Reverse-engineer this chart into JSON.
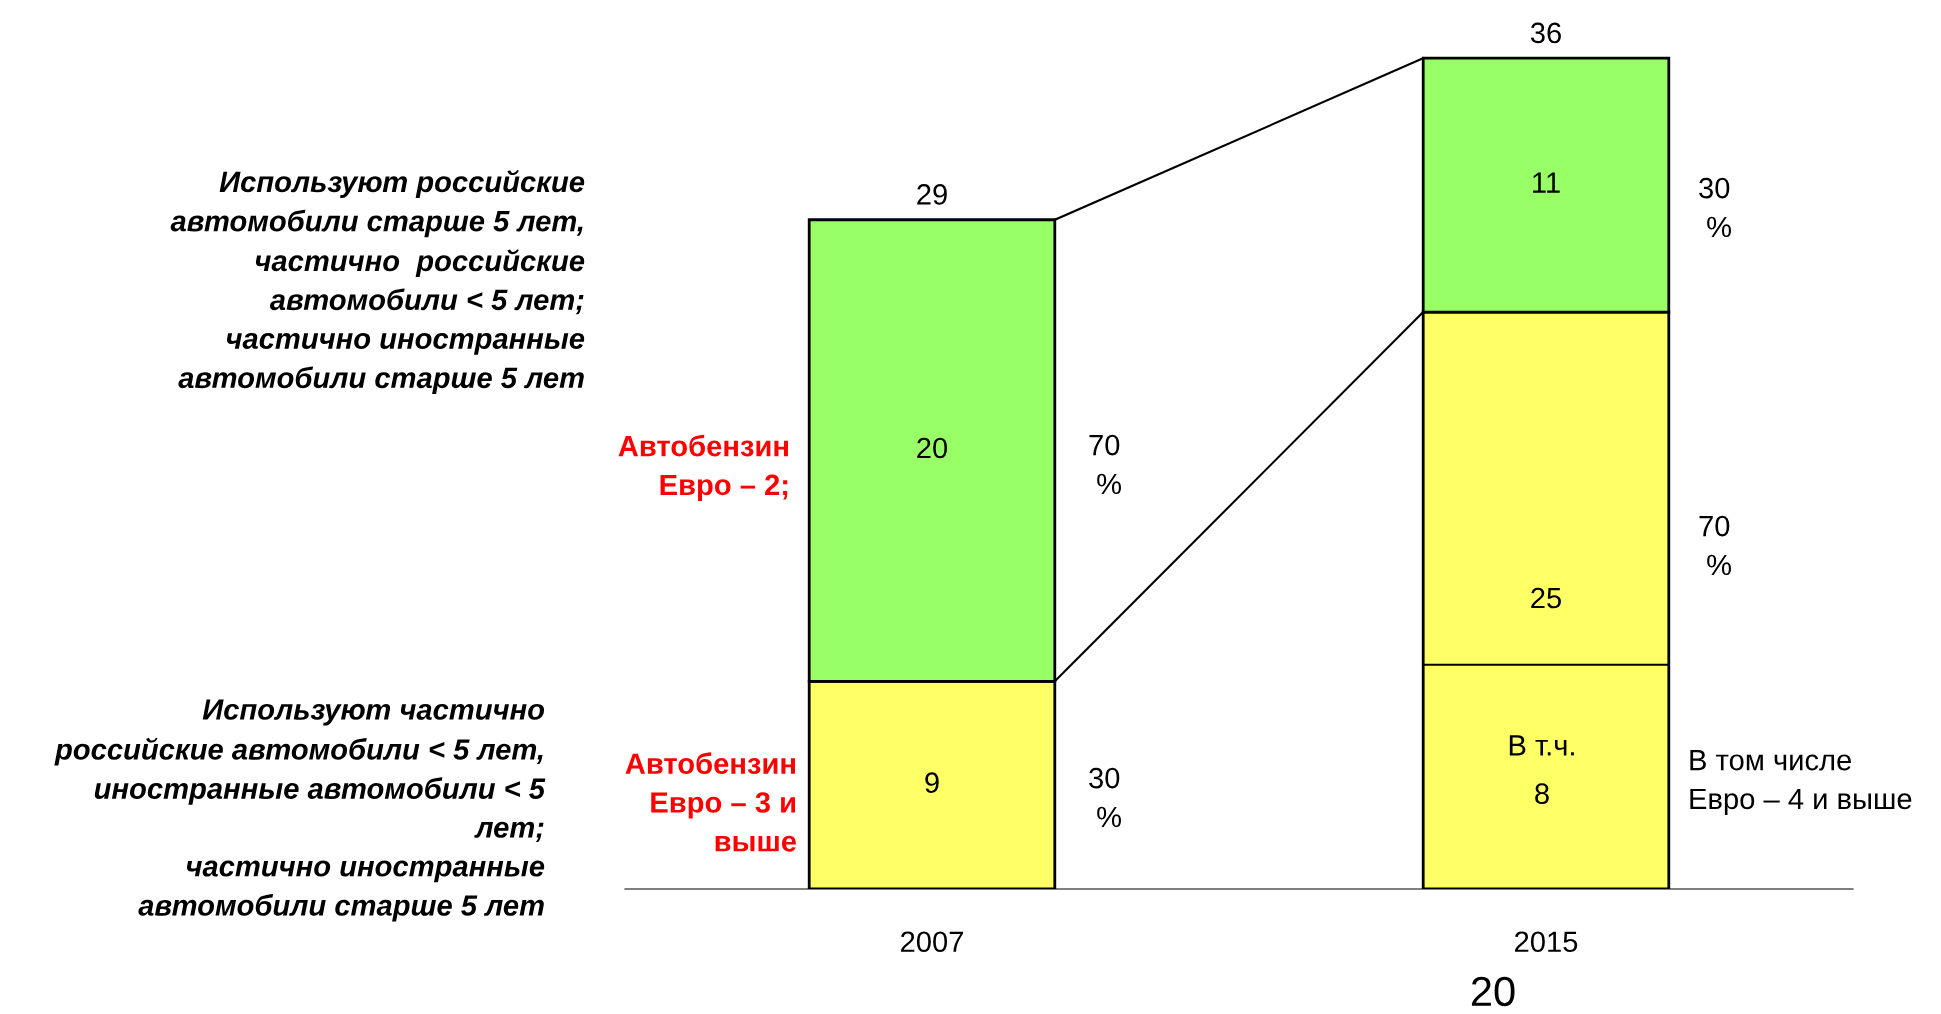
{
  "chart_data": {
    "type": "bar",
    "stacked": true,
    "categories": [
      "2007",
      "2015"
    ],
    "series": [
      {
        "color": "#ffff66",
        "values": [
          9,
          25
        ]
      },
      {
        "color": "#99ff66",
        "values": [
          20,
          11
        ]
      }
    ],
    "data_labels": true,
    "totals": [
      "29",
      "36"
    ],
    "grid": false,
    "legend": false,
    "annotations": [
      "Используют российские\nавтомобили старше 5 лет,\nчастично  российские\nавтомобили < 5 лет;\nчастично иностранные\nавтомобили старше 5 лет",
      "Автобензин\nЕвро – 2;",
      "Используют частично\nроссийские автомобили < 5 лет,\nиностранные автомобили < 5\nлет;\nчастично иностранные\nавтомобили старше 5 лет",
      "Автобензин\nЕвро – 3 и\nвыше",
      "В том числе\nЕвро – 4 и выше",
      "20",
      "70\n %",
      "30\n %",
      "30\n %",
      "70\n %",
      "В т.ч.\n8"
    ]
  }
}
